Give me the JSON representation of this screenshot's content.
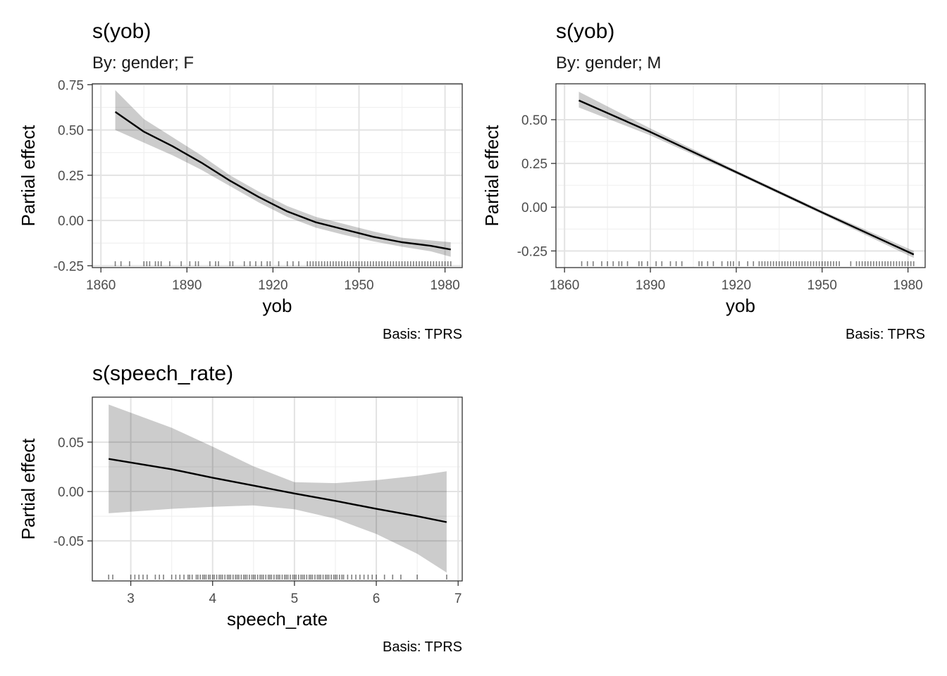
{
  "chart_data": [
    {
      "type": "line",
      "title": "s(yob)",
      "subtitle": "By: gender; F",
      "xlabel": "yob",
      "ylabel": "Partial effect",
      "caption": "Basis: TPRS",
      "xlim": [
        1857,
        1986
      ],
      "ylim": [
        -0.26,
        0.755
      ],
      "xticks": [
        1860,
        1890,
        1920,
        1950,
        1980
      ],
      "xtick_labels": [
        "1860",
        "1890",
        "1920",
        "1950",
        "1980"
      ],
      "yticks": [
        -0.25,
        0,
        0.25,
        0.5,
        0.75
      ],
      "ytick_labels": [
        "-0.25",
        "0.00",
        "0.25",
        "0.50",
        "0.75"
      ],
      "grid": true,
      "x": [
        1865,
        1875,
        1885,
        1895,
        1905,
        1915,
        1925,
        1935,
        1945,
        1955,
        1965,
        1975,
        1982
      ],
      "fit": [
        0.6,
        0.49,
        0.41,
        0.32,
        0.22,
        0.13,
        0.05,
        -0.01,
        -0.05,
        -0.09,
        -0.12,
        -0.14,
        -0.16
      ],
      "lower": [
        0.5,
        0.43,
        0.36,
        0.28,
        0.19,
        0.1,
        0.02,
        -0.04,
        -0.08,
        -0.115,
        -0.145,
        -0.17,
        -0.2
      ],
      "upper": [
        0.72,
        0.56,
        0.46,
        0.36,
        0.25,
        0.16,
        0.08,
        0.02,
        -0.02,
        -0.06,
        -0.095,
        -0.11,
        -0.12
      ],
      "rug": [
        1865,
        1867,
        1870,
        1875,
        1876,
        1877,
        1879,
        1880,
        1881,
        1884,
        1888,
        1891,
        1893,
        1894,
        1898,
        1900,
        1901,
        1905,
        1906,
        1910,
        1912,
        1914,
        1916,
        1918,
        1919,
        1922,
        1925,
        1927,
        1929,
        1932,
        1933,
        1934,
        1935,
        1936,
        1937,
        1938,
        1939,
        1940,
        1941,
        1942,
        1943,
        1944,
        1945,
        1946,
        1947,
        1948,
        1949,
        1950,
        1951,
        1952,
        1953,
        1954,
        1955,
        1956,
        1957,
        1958,
        1959,
        1960,
        1961,
        1962,
        1963,
        1964,
        1965,
        1966,
        1967,
        1968,
        1969,
        1970,
        1971,
        1972,
        1973,
        1974,
        1975,
        1976,
        1977,
        1978,
        1979,
        1980,
        1981,
        1982
      ]
    },
    {
      "type": "line",
      "title": "s(yob)",
      "subtitle": "By: gender; M",
      "xlabel": "yob",
      "ylabel": "Partial effect",
      "caption": "Basis: TPRS",
      "xlim": [
        1857,
        1986
      ],
      "ylim": [
        -0.345,
        0.705
      ],
      "xticks": [
        1860,
        1890,
        1920,
        1950,
        1980
      ],
      "xtick_labels": [
        "1860",
        "1890",
        "1920",
        "1950",
        "1980"
      ],
      "yticks": [
        -0.25,
        0,
        0.25,
        0.5
      ],
      "ytick_labels": [
        "-0.25",
        "0.00",
        "0.25",
        "0.50"
      ],
      "grid": true,
      "x": [
        1865,
        1890,
        1920,
        1950,
        1982
      ],
      "fit": [
        0.61,
        0.43,
        0.2,
        -0.03,
        -0.27
      ],
      "lower": [
        0.57,
        0.41,
        0.19,
        -0.04,
        -0.29
      ],
      "upper": [
        0.66,
        0.45,
        0.21,
        -0.02,
        -0.25
      ],
      "rug": [
        1866,
        1868,
        1870,
        1873,
        1875,
        1877,
        1879,
        1880,
        1882,
        1886,
        1887,
        1889,
        1892,
        1894,
        1897,
        1899,
        1901,
        1907,
        1908,
        1910,
        1912,
        1915,
        1917,
        1918,
        1919,
        1921,
        1924,
        1926,
        1928,
        1929,
        1930,
        1931,
        1932,
        1933,
        1934,
        1935,
        1936,
        1937,
        1938,
        1939,
        1940,
        1941,
        1942,
        1943,
        1944,
        1945,
        1946,
        1947,
        1948,
        1949,
        1950,
        1951,
        1952,
        1953,
        1954,
        1955,
        1956,
        1960,
        1962,
        1963,
        1964,
        1965,
        1966,
        1967,
        1968,
        1969,
        1970,
        1971,
        1972,
        1973,
        1974,
        1975,
        1976,
        1977,
        1978,
        1979,
        1980,
        1981,
        1982
      ]
    },
    {
      "type": "line",
      "title": "s(speech_rate)",
      "subtitle": "",
      "xlabel": "speech_rate",
      "ylabel": "Partial effect",
      "caption": "Basis: TPRS",
      "xlim": [
        2.53,
        7.05
      ],
      "ylim": [
        -0.0905,
        0.0955
      ],
      "xticks": [
        3,
        4,
        5,
        6,
        7
      ],
      "xtick_labels": [
        "3",
        "4",
        "5",
        "6",
        "7"
      ],
      "yticks": [
        -0.05,
        0,
        0.05
      ],
      "ytick_labels": [
        "-0.05",
        "0.00",
        "0.05"
      ],
      "grid": true,
      "x": [
        2.73,
        3.5,
        4.0,
        4.5,
        5.0,
        5.5,
        6.0,
        6.5,
        6.86
      ],
      "fit": [
        0.033,
        0.0225,
        0.014,
        0.006,
        -0.002,
        -0.0095,
        -0.0175,
        -0.025,
        -0.031
      ],
      "lower": [
        -0.022,
        -0.0175,
        -0.0155,
        -0.014,
        -0.018,
        -0.0275,
        -0.043,
        -0.063,
        -0.082
      ],
      "upper": [
        0.088,
        0.0645,
        0.0455,
        0.0255,
        0.0095,
        0.0085,
        0.0115,
        0.016,
        0.0205
      ],
      "rug": [
        2.73,
        2.78,
        3.0,
        3.05,
        3.1,
        3.15,
        3.2,
        3.3,
        3.35,
        3.4,
        3.5,
        3.55,
        3.6,
        3.65,
        3.7,
        3.72,
        3.75,
        3.8,
        3.82,
        3.85,
        3.88,
        3.9,
        3.92,
        3.95,
        3.97,
        4.0,
        4.02,
        4.05,
        4.08,
        4.1,
        4.12,
        4.15,
        4.18,
        4.2,
        4.22,
        4.25,
        4.28,
        4.3,
        4.32,
        4.35,
        4.38,
        4.4,
        4.42,
        4.45,
        4.48,
        4.5,
        4.52,
        4.55,
        4.58,
        4.6,
        4.62,
        4.65,
        4.68,
        4.7,
        4.72,
        4.75,
        4.78,
        4.8,
        4.82,
        4.85,
        4.88,
        4.9,
        4.92,
        4.95,
        4.98,
        5.0,
        5.02,
        5.05,
        5.08,
        5.1,
        5.12,
        5.15,
        5.18,
        5.2,
        5.22,
        5.25,
        5.28,
        5.3,
        5.32,
        5.35,
        5.38,
        5.4,
        5.42,
        5.45,
        5.48,
        5.5,
        5.52,
        5.55,
        5.58,
        5.6,
        5.65,
        5.7,
        5.75,
        5.8,
        5.85,
        5.9,
        5.95,
        6.0,
        6.1,
        6.2,
        6.3,
        6.5,
        6.86
      ]
    }
  ]
}
